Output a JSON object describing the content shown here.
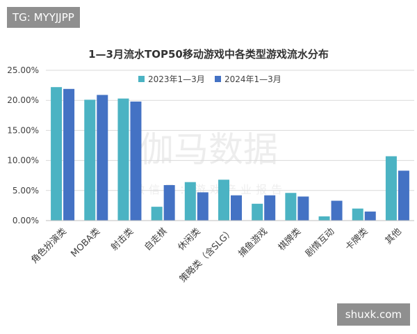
{
  "badges": {
    "tg": "TG: MYYJJPP",
    "site": "shuxk.com"
  },
  "watermark": {
    "main": "伽马数据",
    "sub": "微信号：游戏产业报告"
  },
  "colors": {
    "series_2023": "#4bb3c3",
    "series_2024": "#4472c4",
    "grid": "#d9d9d9",
    "axis": "#bfbfbf",
    "text": "#404040",
    "title": "#333333"
  },
  "chart_data": {
    "type": "bar",
    "title": "1—3月流水TOP50移动游戏中各类型游戏流水分布",
    "xlabel": "",
    "ylabel": "",
    "ylim": [
      0,
      25
    ],
    "yticks": [
      "0.00%",
      "5.00%",
      "10.00%",
      "15.00%",
      "20.00%",
      "25.00%"
    ],
    "grid": true,
    "legend_position": "top-center",
    "categories": [
      "角色扮演类",
      "MOBA类",
      "射击类",
      "自走棋",
      "休闲类",
      "策略类（含SLG）",
      "捕鱼游戏",
      "棋牌类",
      "剧情互动",
      "卡牌类",
      "其他"
    ],
    "series": [
      {
        "name": "2023年1—3月",
        "values": [
          22.2,
          20.1,
          20.3,
          2.3,
          6.4,
          6.8,
          2.8,
          4.6,
          0.7,
          2.0,
          10.7
        ]
      },
      {
        "name": "2024年1—3月",
        "values": [
          21.9,
          20.9,
          19.8,
          5.9,
          4.7,
          4.2,
          4.2,
          4.0,
          3.3,
          1.5,
          8.3
        ]
      }
    ]
  }
}
